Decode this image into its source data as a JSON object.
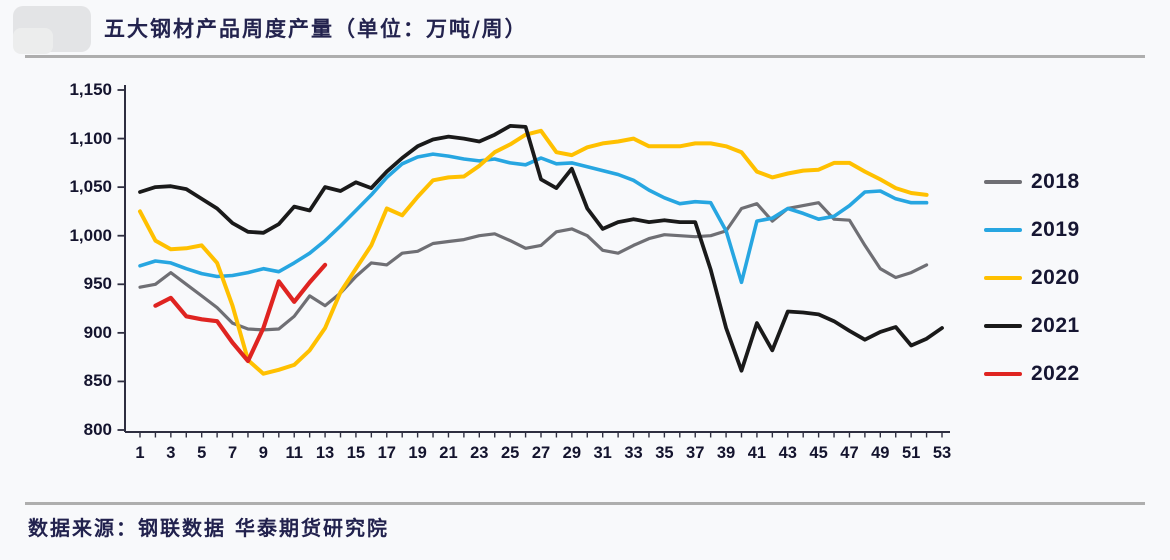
{
  "header": {
    "title": "五大钢材产品周度产量（单位：万吨/周）"
  },
  "footer": {
    "source": "数据来源：钢联数据  华泰期货研究院"
  },
  "chart_data": {
    "type": "line",
    "title": "五大钢材产品周度产量（单位：万吨/周）",
    "xlabel": "",
    "ylabel": "",
    "unit": "万吨/周",
    "xlim": [
      1,
      53
    ],
    "ylim": [
      800,
      1150
    ],
    "grid": false,
    "legend_position": "right",
    "x_ticks_labeled": [
      1,
      3,
      5,
      7,
      9,
      11,
      13,
      15,
      17,
      19,
      21,
      23,
      25,
      27,
      29,
      31,
      33,
      35,
      37,
      39,
      41,
      43,
      45,
      47,
      49,
      51,
      53
    ],
    "y_ticks": [
      800,
      850,
      900,
      950,
      1000,
      1050,
      1100,
      1150
    ],
    "y_tick_labels": [
      "800",
      "850",
      "900",
      "950",
      "1,000",
      "1,050",
      "1,100",
      "1,150"
    ],
    "series": [
      {
        "name": "2018",
        "color": "#6f6f74",
        "start_week": 1,
        "values": [
          947,
          950,
          962,
          950,
          938,
          926,
          910,
          904,
          903,
          904,
          917,
          938,
          928,
          941,
          958,
          972,
          970,
          982,
          984,
          992,
          994,
          996,
          1000,
          1002,
          995,
          987,
          990,
          1004,
          1007,
          1000,
          985,
          982,
          990,
          997,
          1001,
          1000,
          999,
          1000,
          1005,
          1028,
          1033,
          1015,
          1028,
          1031,
          1034,
          1017,
          1016,
          990,
          966,
          957,
          962,
          970
        ]
      },
      {
        "name": "2019",
        "color": "#27a6e1",
        "start_week": 1,
        "values": [
          969,
          974,
          972,
          966,
          961,
          958,
          959,
          962,
          966,
          963,
          972,
          982,
          995,
          1010,
          1026,
          1042,
          1060,
          1074,
          1081,
          1084,
          1082,
          1079,
          1077,
          1079,
          1075,
          1073,
          1080,
          1074,
          1075,
          1071,
          1067,
          1063,
          1057,
          1047,
          1039,
          1033,
          1035,
          1034,
          1005,
          952,
          1015,
          1018,
          1028,
          1023,
          1017,
          1020,
          1031,
          1045,
          1046,
          1038,
          1034,
          1034
        ]
      },
      {
        "name": "2020",
        "color": "#ffc000",
        "start_week": 1,
        "values": [
          1025,
          995,
          986,
          987,
          990,
          972,
          928,
          872,
          858,
          862,
          867,
          882,
          905,
          942,
          966,
          990,
          1028,
          1021,
          1040,
          1057,
          1060,
          1061,
          1072,
          1086,
          1094,
          1104,
          1108,
          1086,
          1083,
          1091,
          1095,
          1097,
          1100,
          1092,
          1092,
          1092,
          1095,
          1095,
          1092,
          1086,
          1066,
          1060,
          1064,
          1067,
          1068,
          1075,
          1075,
          1066,
          1058,
          1049,
          1044,
          1042
        ]
      },
      {
        "name": "2021",
        "color": "#1a1a1a",
        "start_week": 1,
        "values": [
          1045,
          1050,
          1051,
          1048,
          1038,
          1028,
          1013,
          1004,
          1003,
          1012,
          1030,
          1026,
          1050,
          1046,
          1055,
          1049,
          1066,
          1080,
          1092,
          1099,
          1102,
          1100,
          1097,
          1104,
          1113,
          1112,
          1058,
          1049,
          1069,
          1028,
          1007,
          1014,
          1017,
          1014,
          1016,
          1014,
          1014,
          965,
          905,
          861,
          910,
          882,
          922,
          921,
          919,
          912,
          902,
          893,
          901,
          906,
          887,
          894,
          905
        ]
      },
      {
        "name": "2022",
        "color": "#df2421",
        "start_week": 2,
        "values": [
          928,
          936,
          917,
          914,
          912,
          890,
          871,
          905,
          953,
          932,
          952,
          970
        ]
      }
    ]
  }
}
